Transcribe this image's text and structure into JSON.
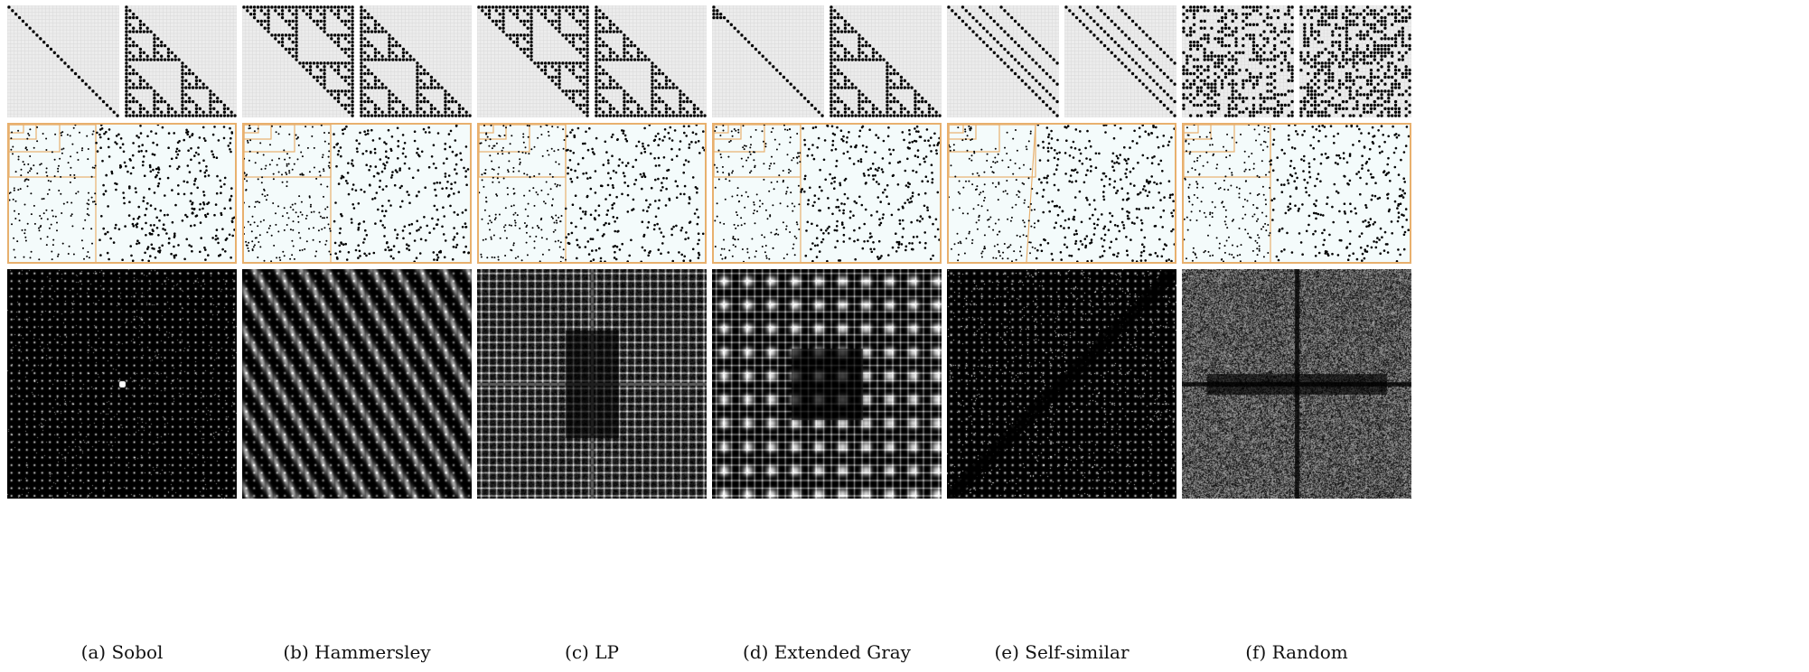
{
  "figure": {
    "panels": [
      {
        "id": "a",
        "caption": "(a) Sobol",
        "matrix_pattern": [
          "diagonal",
          "sierpinski"
        ],
        "spectrum_style": "sparse-dots"
      },
      {
        "id": "b",
        "caption": "(b) Hammersley",
        "matrix_pattern": [
          "sierpinski-reverse",
          "sierpinski"
        ],
        "spectrum_style": "diagonal-streaks"
      },
      {
        "id": "c",
        "caption": "(c) LP",
        "matrix_pattern": [
          "sierpinski-reverse",
          "sierpinski"
        ],
        "spectrum_style": "grid-cross"
      },
      {
        "id": "d",
        "caption": "(d) Extended Gray",
        "matrix_pattern": [
          "diagonal-gray",
          "sierpinski"
        ],
        "spectrum_style": "grid-blocks"
      },
      {
        "id": "e",
        "caption": "(e) Self-similar",
        "matrix_pattern": [
          "parallel-lines",
          "parallel-lines"
        ],
        "spectrum_style": "diagonal-band"
      },
      {
        "id": "f",
        "caption": "(f) Random",
        "matrix_pattern": [
          "random",
          "random"
        ],
        "spectrum_style": "noise-cross"
      }
    ],
    "colors": {
      "matrix_background": "#ececec",
      "matrix_grid": "#d6d6d6",
      "matrix_dot": "#000000",
      "pointset_background": "#f4fbfb",
      "pointset_border": "#e8b06e",
      "pointset_dot": "#000000",
      "spectrum_background": "#000000",
      "spectrum_bright": "#ffffff"
    }
  }
}
